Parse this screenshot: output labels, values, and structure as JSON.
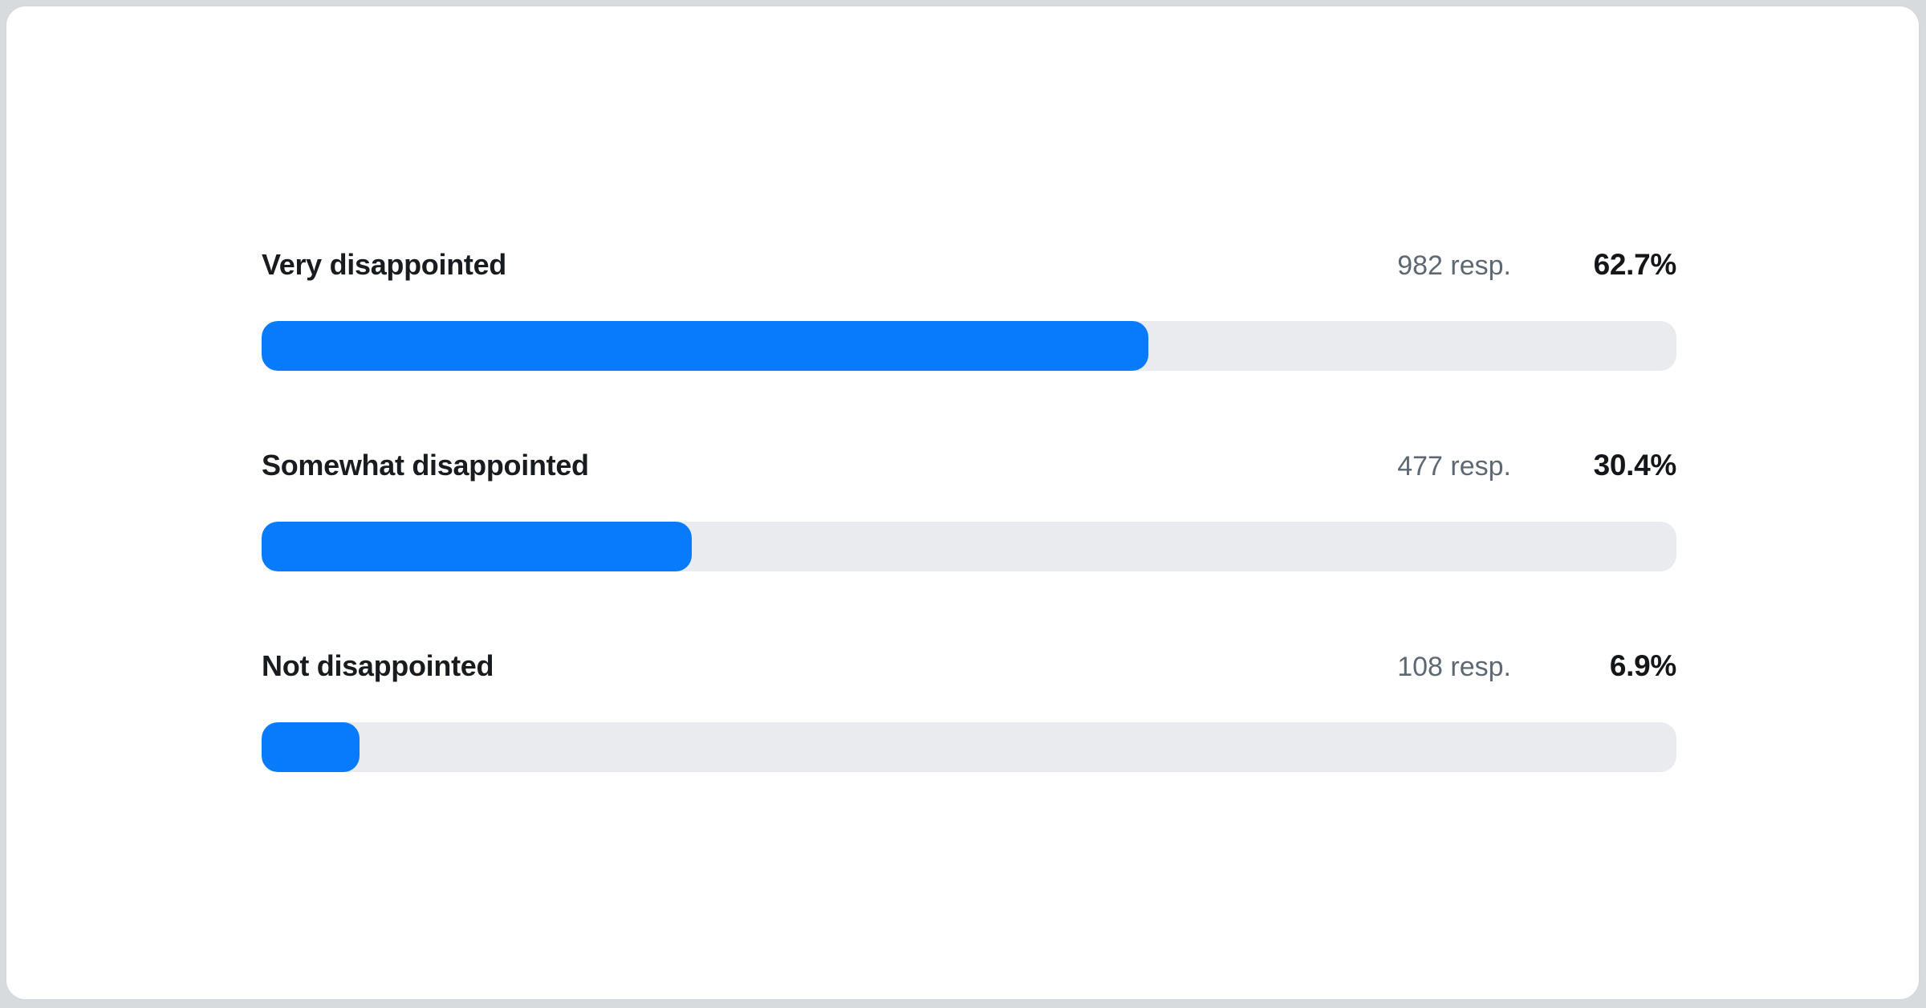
{
  "chart_data": {
    "type": "bar",
    "orientation": "horizontal",
    "title": "",
    "xlabel": "",
    "ylabel": "",
    "xlim": [
      0,
      100
    ],
    "unit": "percent",
    "grid": false,
    "legend": "none",
    "categories": [
      "Very disappointed",
      "Somewhat disappointed",
      "Not disappointed"
    ],
    "values": [
      62.7,
      30.4,
      6.9
    ],
    "responses": [
      982,
      477,
      108
    ],
    "rows": [
      {
        "label": "Very disappointed",
        "responses_text": "982 resp.",
        "percent_text": "62.7%",
        "value": 62.7
      },
      {
        "label": "Somewhat disappointed",
        "responses_text": "477 resp.",
        "percent_text": "30.4%",
        "value": 30.4
      },
      {
        "label": "Not disappointed",
        "responses_text": "108 resp.",
        "percent_text": "6.9%",
        "value": 6.9
      }
    ],
    "colors": {
      "bar_fill": "#077bfb",
      "bar_track": "#e9ebef",
      "label_text": "#191c1f",
      "responses_text": "#5d6873",
      "percent_text": "#14171a",
      "card_background": "#ffffff",
      "card_border": "#d5d9dd",
      "page_background": "#d8dbde"
    }
  }
}
